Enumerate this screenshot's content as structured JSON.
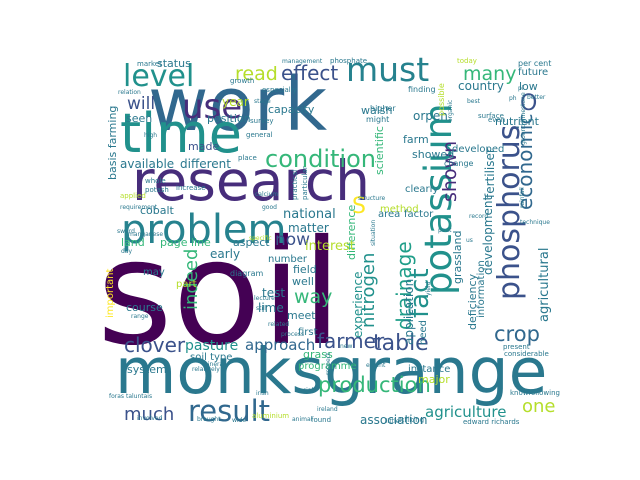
{
  "palette": [
    "#440154",
    "#3b528b",
    "#31688e",
    "#21918c",
    "#35b779",
    "#5ec962",
    "#b5de2b",
    "#fde725",
    "#2a788e",
    "#26828e",
    "#1f9e89",
    "#90d743",
    "#472d7b",
    "#d0e11c"
  ],
  "words": [
    {
      "text": "soil",
      "c": 0
    },
    {
      "text": "work",
      "c": 2
    },
    {
      "text": "monksgrange",
      "c": 8
    },
    {
      "text": "research",
      "c": 12
    },
    {
      "text": "time",
      "c": 3
    },
    {
      "text": "problem",
      "c": 9
    },
    {
      "text": "potassium",
      "c": 3
    },
    {
      "text": "phosphorus",
      "c": 1
    },
    {
      "text": "result",
      "c": 2
    },
    {
      "text": "use",
      "c": 12
    },
    {
      "text": "level",
      "c": 3
    },
    {
      "text": "must",
      "c": 9
    },
    {
      "text": "condition",
      "c": 4
    },
    {
      "text": "production",
      "c": 4
    },
    {
      "text": "table",
      "c": 1
    },
    {
      "text": "farmer",
      "c": 1
    },
    {
      "text": "clover",
      "c": 1
    },
    {
      "text": "crop",
      "c": 2
    },
    {
      "text": "fact",
      "c": 3
    },
    {
      "text": "drainage",
      "c": 10
    },
    {
      "text": "nitrogen",
      "c": 3
    },
    {
      "text": "economic",
      "c": 2
    },
    {
      "text": "effect",
      "c": 1
    },
    {
      "text": "read",
      "c": 6
    },
    {
      "text": "many",
      "c": 4
    },
    {
      "text": "shown",
      "c": 12
    },
    {
      "text": "way",
      "c": 4
    },
    {
      "text": "indeed",
      "c": 4
    },
    {
      "text": "much",
      "c": 1
    },
    {
      "text": "one",
      "c": 6
    },
    {
      "text": "now",
      "c": 1
    },
    {
      "text": "will",
      "c": 1
    },
    {
      "text": "S",
      "c": 7
    },
    {
      "text": "O",
      "c": 1
    },
    {
      "text": "approach",
      "c": 2
    },
    {
      "text": "pasture",
      "c": 3
    },
    {
      "text": "agriculture",
      "c": 3
    },
    {
      "text": "association",
      "c": 8
    },
    {
      "text": "agricultural",
      "c": 8
    },
    {
      "text": "development",
      "c": 8
    },
    {
      "text": "fertiliser",
      "c": 8
    },
    {
      "text": "deficiency",
      "c": 8
    },
    {
      "text": "grassland",
      "c": 8
    },
    {
      "text": "application",
      "c": 8
    },
    {
      "text": "experience",
      "c": 3
    },
    {
      "text": "difference",
      "c": 4
    },
    {
      "text": "scientific",
      "c": 4
    },
    {
      "text": "interest",
      "c": 6
    },
    {
      "text": "national",
      "c": 8
    },
    {
      "text": "matter",
      "c": 8
    },
    {
      "text": "cobalt",
      "c": 8
    },
    {
      "text": "available",
      "c": 8
    },
    {
      "text": "different",
      "c": 8
    },
    {
      "text": "made",
      "c": 1
    },
    {
      "text": "seen",
      "c": 8
    },
    {
      "text": "position",
      "c": 8
    },
    {
      "text": "year",
      "c": 6
    },
    {
      "text": "status",
      "c": 8
    },
    {
      "text": "capacity",
      "c": 8
    },
    {
      "text": "walsh",
      "c": 8
    },
    {
      "text": "orpen",
      "c": 8
    },
    {
      "text": "showed",
      "c": 8
    },
    {
      "text": "farm",
      "c": 8
    },
    {
      "text": "country",
      "c": 8
    },
    {
      "text": "low",
      "c": 8
    },
    {
      "text": "future",
      "c": 8
    },
    {
      "text": "nutrient",
      "c": 8
    },
    {
      "text": "developed",
      "c": 8
    },
    {
      "text": "method",
      "c": 6
    },
    {
      "text": "factor",
      "c": 8
    },
    {
      "text": "area",
      "c": 8
    },
    {
      "text": "land",
      "c": 4
    },
    {
      "text": "page line",
      "c": 4
    },
    {
      "text": "aspect",
      "c": 8
    },
    {
      "text": "early",
      "c": 8
    },
    {
      "text": "test",
      "c": 8
    },
    {
      "text": "lime",
      "c": 8
    },
    {
      "text": "well",
      "c": 8
    },
    {
      "text": "field",
      "c": 8
    },
    {
      "text": "number",
      "c": 8
    },
    {
      "text": "meet",
      "c": 8
    },
    {
      "text": "first",
      "c": 8
    },
    {
      "text": "grass",
      "c": 4
    },
    {
      "text": "programme",
      "c": 4
    },
    {
      "text": "major",
      "c": 6
    },
    {
      "text": "need",
      "c": 8
    },
    {
      "text": "instance",
      "c": 8
    },
    {
      "text": "information",
      "c": 8
    },
    {
      "text": "soil type",
      "c": 8
    },
    {
      "text": "system",
      "c": 8
    },
    {
      "text": "course",
      "c": 8
    },
    {
      "text": "may",
      "c": 8
    },
    {
      "text": "important",
      "c": 7
    },
    {
      "text": "basis farming",
      "c": 8
    },
    {
      "text": "part",
      "c": 6
    },
    {
      "text": "diagram",
      "c": 8
    },
    {
      "text": "increase",
      "c": 8
    },
    {
      "text": "clearly",
      "c": 8
    },
    {
      "text": "change",
      "c": 8
    },
    {
      "text": "higher",
      "c": 8
    },
    {
      "text": "might",
      "c": 8
    },
    {
      "text": "growth",
      "c": 8
    },
    {
      "text": "especially",
      "c": 8
    },
    {
      "text": "phosphate",
      "c": 8
    },
    {
      "text": "management",
      "c": 8
    },
    {
      "text": "market",
      "c": 8
    },
    {
      "text": "possible",
      "c": 6
    },
    {
      "text": "finding",
      "c": 8
    },
    {
      "text": "today",
      "c": 6
    },
    {
      "text": "per cent",
      "c": 8
    },
    {
      "text": "better",
      "c": 8
    },
    {
      "text": "present",
      "c": 8
    },
    {
      "text": "considerable",
      "c": 8
    },
    {
      "text": "knowfollowing",
      "c": 8
    },
    {
      "text": "edward richards",
      "c": 8
    },
    {
      "text": "found",
      "c": 8
    },
    {
      "text": "striking",
      "c": 8
    },
    {
      "text": "extent",
      "c": 8
    },
    {
      "text": "ireland",
      "c": 8
    },
    {
      "text": "irish",
      "c": 8
    },
    {
      "text": "process",
      "c": 8
    },
    {
      "text": "lecture",
      "c": 8
    },
    {
      "text": "still",
      "c": 8
    },
    {
      "text": "related",
      "c": 8
    },
    {
      "text": "potash",
      "c": 8
    },
    {
      "text": "whole",
      "c": 8
    },
    {
      "text": "applied",
      "c": 6
    },
    {
      "text": "requirement",
      "c": 8
    },
    {
      "text": "high",
      "c": 8
    },
    {
      "text": "relation",
      "c": 8
    },
    {
      "text": "sward",
      "c": 8
    },
    {
      "text": "good",
      "c": 8
    },
    {
      "text": "calcium",
      "c": 8
    },
    {
      "text": "practical",
      "c": 8
    },
    {
      "text": "particular",
      "c": 8
    },
    {
      "text": "place",
      "c": 8
    },
    {
      "text": "survey",
      "c": 8
    },
    {
      "text": "general",
      "c": 8
    },
    {
      "text": "stage",
      "c": 8
    },
    {
      "text": "even",
      "c": 8
    },
    {
      "text": "surface",
      "c": 8
    },
    {
      "text": "technique",
      "c": 8
    },
    {
      "text": "rainfall",
      "c": 8
    },
    {
      "text": "peat",
      "c": 8
    },
    {
      "text": "us",
      "c": 8
    },
    {
      "text": "record",
      "c": 8
    },
    {
      "text": "specific",
      "c": 6
    },
    {
      "text": "manganese",
      "c": 8
    },
    {
      "text": "range",
      "c": 8
    },
    {
      "text": "mineral",
      "c": 8
    },
    {
      "text": "relatively",
      "c": 8
    },
    {
      "text": "involved",
      "c": 8
    },
    {
      "text": "foras taluntais",
      "c": 8
    },
    {
      "text": "brought",
      "c": 8
    },
    {
      "text": "wide",
      "c": 8
    },
    {
      "text": "aluminium",
      "c": 6
    },
    {
      "text": "animal",
      "c": 8
    },
    {
      "text": "social",
      "c": 8
    },
    {
      "text": "new",
      "c": 8
    },
    {
      "text": "respect",
      "c": 8
    },
    {
      "text": "structure",
      "c": 8
    },
    {
      "text": "situation",
      "c": 8
    },
    {
      "text": "little",
      "c": 8
    },
    {
      "text": "yield",
      "c": 8
    },
    {
      "text": "day",
      "c": 8
    },
    {
      "text": "ground limestone",
      "c": 8
    },
    {
      "text": "ph",
      "c": 8
    },
    {
      "text": "pl",
      "c": 8
    },
    {
      "text": "best",
      "c": 8
    },
    {
      "text": "organic",
      "c": 8
    }
  ]
}
